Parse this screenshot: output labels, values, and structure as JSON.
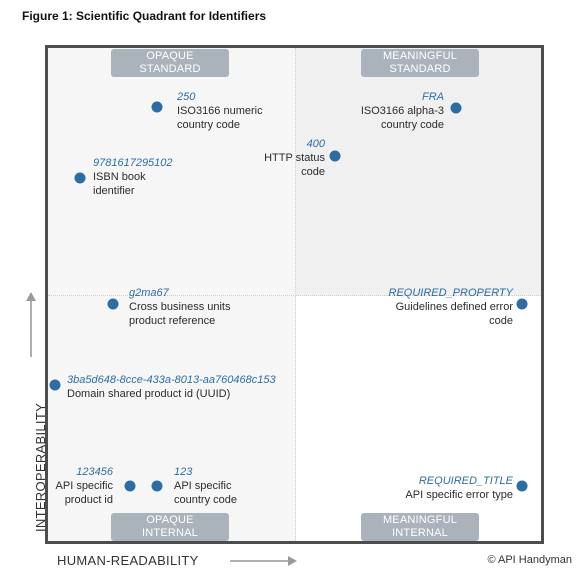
{
  "title": "Figure 1: Scientific Quadrant for Identifiers",
  "axes": {
    "x_label": "HUMAN-READABILITY",
    "y_label": "INTEROPERABILITY"
  },
  "quadrant_labels": {
    "opaque_standard": [
      "OPAQUE",
      "STANDARD"
    ],
    "meaningful_standard": [
      "MEANINGFUL",
      "STANDARD"
    ],
    "opaque_internal": [
      "OPAQUE",
      "INTERNAL"
    ],
    "meaningful_internal": [
      "MEANINGFUL",
      "INTERNAL"
    ]
  },
  "points": [
    {
      "id": "250",
      "lines": [
        "ISO3166 numeric",
        "country code"
      ]
    },
    {
      "id": "9781617295102",
      "lines": [
        "ISBN book",
        "identifier"
      ]
    },
    {
      "id": "FRA",
      "lines": [
        "ISO3166 alpha-3",
        "country code"
      ]
    },
    {
      "id": "400",
      "lines": [
        "HTTP status",
        "code"
      ]
    },
    {
      "id": "g2ma67",
      "lines": [
        "Cross business units",
        "product reference"
      ]
    },
    {
      "id": "3ba5d648-8cce-433a-8013-aa760468c153",
      "lines": [
        "Domain shared product id (UUID)"
      ]
    },
    {
      "id": "REQUIRED_PROPERTY",
      "lines": [
        "Guidelines defined error",
        "code"
      ]
    },
    {
      "id": "123456",
      "lines": [
        "API specific",
        "product id"
      ]
    },
    {
      "id": "123",
      "lines": [
        "API specific",
        "country code"
      ]
    },
    {
      "id": "REQUIRED_TITLE",
      "lines": [
        "API specific error type"
      ]
    }
  ],
  "copyright": "© API Handyman",
  "colors": {
    "dot": "#2e6da4",
    "quadrant_label_bg": "#aab3bb",
    "frame": "#4d4d4d"
  }
}
